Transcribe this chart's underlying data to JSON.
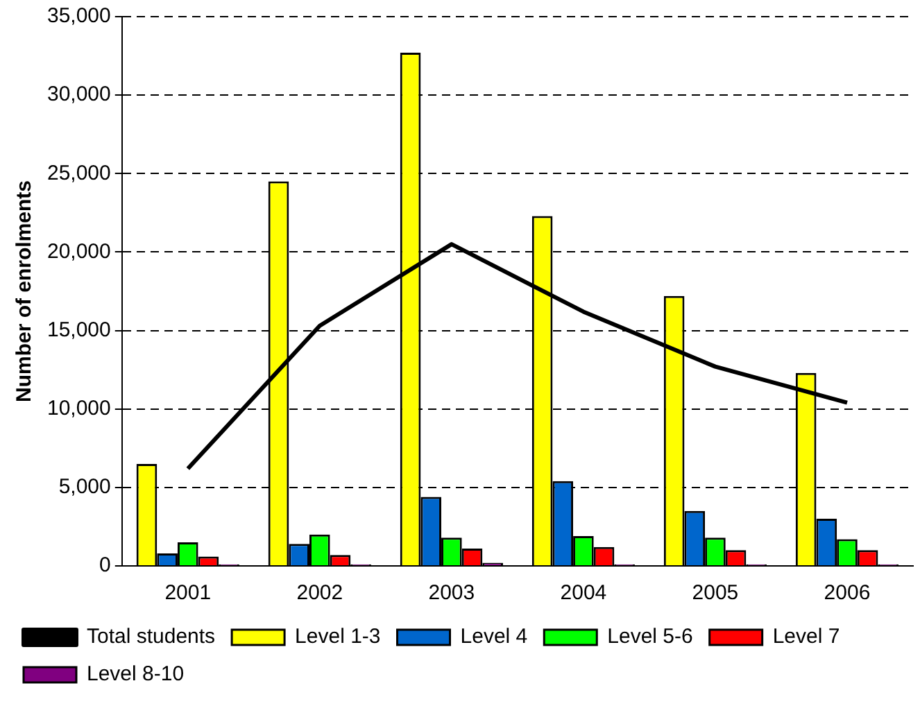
{
  "chart_data": {
    "type": "bar",
    "ylabel": "Number of enrolments",
    "categories": [
      "2001",
      "2002",
      "2003",
      "2004",
      "2005",
      "2006"
    ],
    "series": [
      {
        "name": "Level 1-3",
        "color": "#ffff00",
        "values": [
          6500,
          24500,
          32700,
          22300,
          17200,
          12300
        ]
      },
      {
        "name": "Level 4",
        "color": "#0066cc",
        "values": [
          800,
          1400,
          4400,
          5400,
          3500,
          3000
        ]
      },
      {
        "name": "Level 5-6",
        "color": "#00ff00",
        "values": [
          1500,
          2000,
          1800,
          1900,
          1800,
          1700
        ]
      },
      {
        "name": "Level 7",
        "color": "#ff0000",
        "values": [
          600,
          700,
          1100,
          1200,
          1000,
          1000
        ]
      },
      {
        "name": "Level 8-10",
        "color": "#800080",
        "values": [
          100,
          100,
          200,
          100,
          100,
          100
        ]
      },
      {
        "name": "Total students",
        "type": "line",
        "color": "#000000",
        "values": [
          6200,
          15300,
          20500,
          16200,
          12700,
          10400
        ]
      }
    ],
    "ylim": [
      0,
      35000
    ],
    "yticks": [
      {
        "value": 0,
        "label": "0"
      },
      {
        "value": 5000,
        "label": "5,000"
      },
      {
        "value": 10000,
        "label": "10,000"
      },
      {
        "value": 15000,
        "label": "15,000"
      },
      {
        "value": 20000,
        "label": "20,000"
      },
      {
        "value": 25000,
        "label": "25,000"
      },
      {
        "value": 30000,
        "label": "30,000"
      },
      {
        "value": 35000,
        "label": "35,000"
      }
    ],
    "grid": "y",
    "legend": "bottom",
    "marker": "none"
  }
}
